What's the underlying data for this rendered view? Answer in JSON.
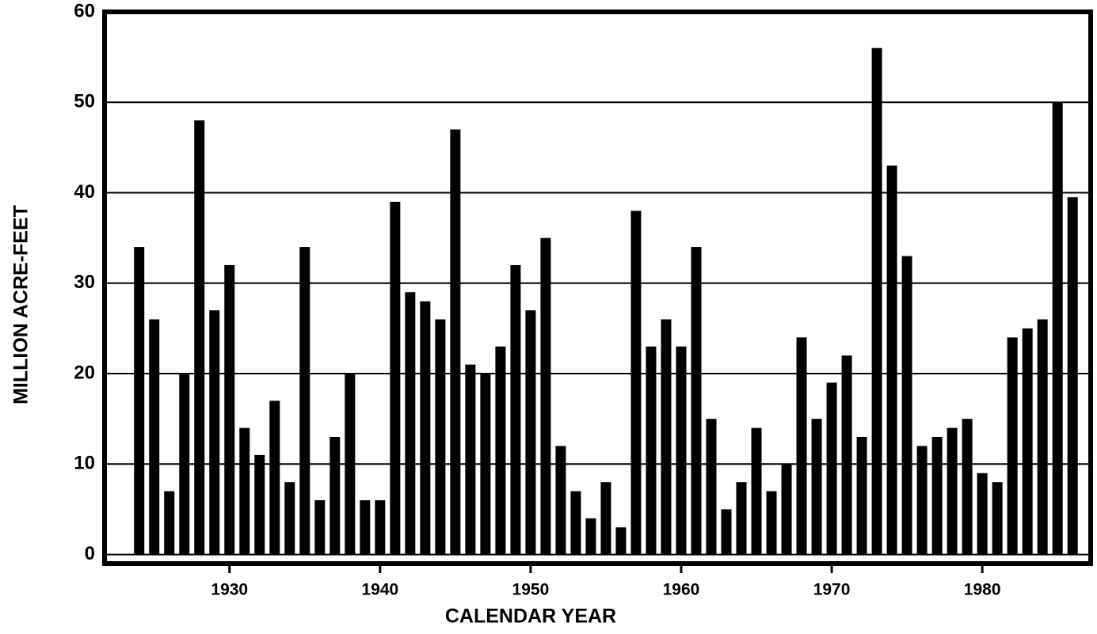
{
  "chart_data": {
    "type": "bar",
    "x_label": "CALENDAR YEAR",
    "y_label": "MILLION ACRE-FEET",
    "x": [
      1924,
      1925,
      1926,
      1927,
      1928,
      1929,
      1930,
      1931,
      1932,
      1933,
      1934,
      1935,
      1936,
      1937,
      1938,
      1939,
      1940,
      1941,
      1942,
      1943,
      1944,
      1945,
      1946,
      1947,
      1948,
      1949,
      1950,
      1951,
      1952,
      1953,
      1954,
      1955,
      1956,
      1957,
      1958,
      1959,
      1960,
      1961,
      1962,
      1963,
      1964,
      1965,
      1966,
      1967,
      1968,
      1969,
      1970,
      1971,
      1972,
      1973,
      1974,
      1975,
      1976,
      1977,
      1978,
      1979,
      1980,
      1981,
      1982,
      1983,
      1984,
      1985,
      1986
    ],
    "values": [
      34,
      26,
      7,
      20,
      48,
      27,
      32,
      14,
      11,
      17,
      8,
      34,
      6,
      13,
      20,
      6,
      6,
      39,
      29,
      28,
      26,
      47,
      21,
      20,
      23,
      32,
      27,
      35,
      12,
      7,
      4,
      8,
      3,
      38,
      23,
      26,
      23,
      34,
      15,
      5,
      8,
      14,
      7,
      10,
      24,
      15,
      19,
      22,
      13,
      56,
      43,
      33,
      12,
      13,
      14,
      15,
      9,
      8,
      24,
      25,
      26,
      50,
      39.5
    ],
    "color": "#000000",
    "xlim": [
      1921.7,
      1987.2
    ],
    "xticks": [
      1930,
      1940,
      1950,
      1960,
      1970,
      1980
    ],
    "ylim": [
      -1,
      60
    ],
    "yticks": [
      0,
      10,
      20,
      30,
      40,
      50,
      60
    ],
    "grid": true
  }
}
